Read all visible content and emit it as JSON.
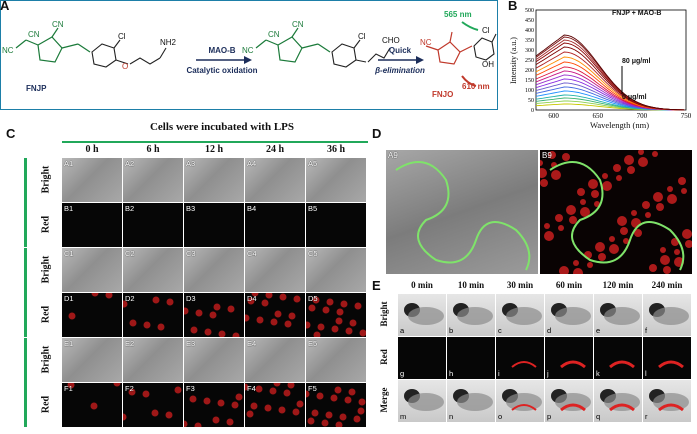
{
  "panelA": {
    "letter": "A",
    "compound1": "FNJP",
    "compound2": "FNJO",
    "step1_label": "MAO-B",
    "step1_sub": "Catalytic oxidation",
    "step2_label": "Quick",
    "step2_sub": "β-elimination",
    "ex_label": "565 nm",
    "em_label": "610 nm",
    "groups": {
      "cn": "CN",
      "nc": "NC",
      "cl": "Cl",
      "nh2": "NH2",
      "cho": "CHO",
      "oh": "OH",
      "o": "O"
    }
  },
  "panelB": {
    "letter": "B",
    "legend": "FNJP + MAO-B",
    "top_label": "80 μg/ml",
    "bottom_label": "0 μg/ml",
    "chart_data": {
      "type": "line",
      "xlabel": "Wavelength (nm)",
      "ylabel": "Intensity (a.u.)",
      "xlim": [
        580,
        750
      ],
      "ylim": [
        0,
        500
      ],
      "xticks": [
        600,
        650,
        700,
        750
      ],
      "yticks": [
        0,
        50,
        100,
        150,
        200,
        250,
        300,
        350,
        400,
        450,
        500
      ],
      "peak_x": 612,
      "series_peaks": [
        30,
        45,
        60,
        75,
        95,
        115,
        135,
        155,
        175,
        195,
        215,
        240,
        265,
        290,
        315,
        335,
        350,
        365,
        375
      ],
      "series_colors": [
        "#c8c800",
        "#8fd14f",
        "#3cb371",
        "#20b2aa",
        "#1e90ff",
        "#4169e1",
        "#6a5acd",
        "#8a2be2",
        "#9932cc",
        "#c71585",
        "#dc143c",
        "#ff4500",
        "#ff8c00",
        "#b22222",
        "#800000",
        "#8b0000",
        "#a52a2a",
        "#7b1010",
        "#5a0000"
      ]
    }
  },
  "panelC": {
    "letter": "C",
    "title": "Cells were incubated with LPS",
    "times": [
      "0 h",
      "6 h",
      "12 h",
      "24 h",
      "36 h"
    ],
    "row_labels": [
      "Bright",
      "Red",
      "Bright",
      "Red",
      "Bright",
      "Red"
    ],
    "rows": [
      [
        "A1",
        "A2",
        "A3",
        "A4",
        "A5"
      ],
      [
        "B1",
        "B2",
        "B3",
        "B4",
        "B5"
      ],
      [
        "C1",
        "C2",
        "C3",
        "C4",
        "C5"
      ],
      [
        "D1",
        "D2",
        "D3",
        "D4",
        "D5"
      ],
      [
        "E1",
        "E2",
        "E3",
        "E4",
        "E5"
      ],
      [
        "F1",
        "F2",
        "F3",
        "F4",
        "F5"
      ]
    ]
  },
  "panelD": {
    "letter": "D",
    "left_label": "A9",
    "right_label": "B9"
  },
  "panelE": {
    "letter": "E",
    "times": [
      "0 min",
      "10 min",
      "30 min",
      "60 min",
      "120 min",
      "240 min"
    ],
    "row_labels": [
      "Bright",
      "Red",
      "Merge"
    ],
    "rows": [
      [
        "a",
        "b",
        "c",
        "d",
        "e",
        "f"
      ],
      [
        "g",
        "h",
        "i",
        "j",
        "k",
        "l"
      ],
      [
        "m",
        "n",
        "o",
        "p",
        "q",
        "r"
      ]
    ]
  },
  "colors": {
    "accent_green": "#21a85a",
    "frame_blue": "#1d7fa8",
    "fnjo_red": "#c0392b"
  }
}
